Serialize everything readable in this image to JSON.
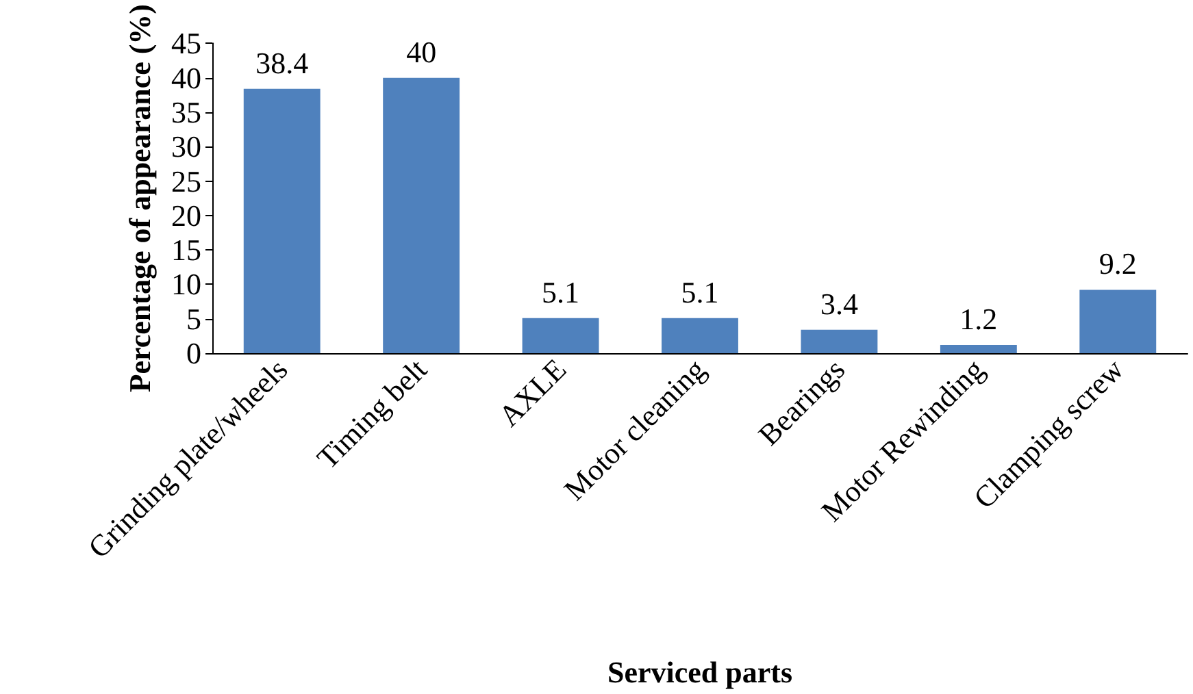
{
  "chart_data": {
    "type": "bar",
    "xlabel": "Serviced parts",
    "ylabel": "Percentage of appearance (%)",
    "categories": [
      "Grinding plate/wheels",
      "Timing belt",
      "AXLE",
      "Motor cleaning",
      "Bearings",
      "Motor Rewinding",
      "Clamping screw"
    ],
    "values": [
      38.4,
      40,
      5.1,
      5.1,
      3.4,
      1.2,
      9.2
    ],
    "color": "#4f81bd",
    "ylim": [
      0,
      45
    ],
    "yticks": [
      0,
      5,
      10,
      15,
      20,
      25,
      30,
      35,
      40,
      45
    ],
    "data_labels": true
  }
}
